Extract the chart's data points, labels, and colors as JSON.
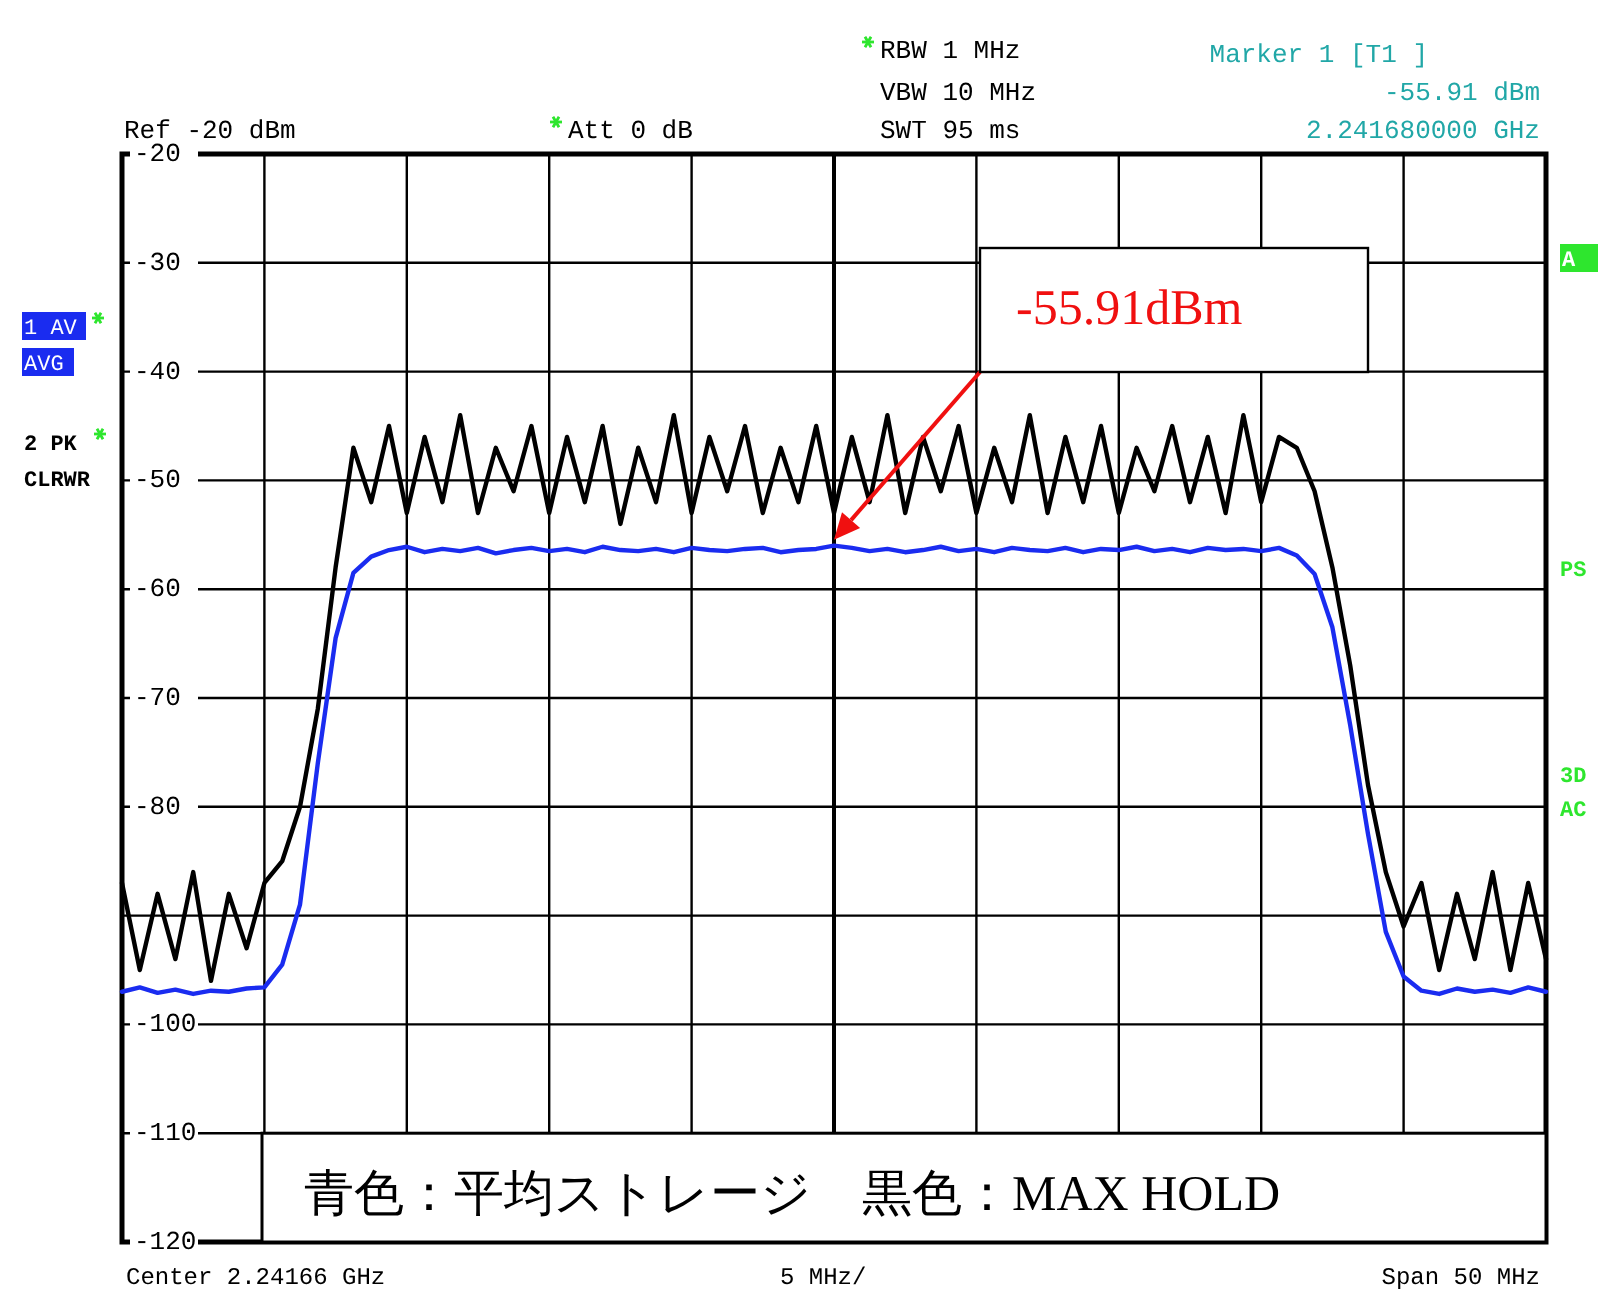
{
  "chart_data": {
    "type": "line",
    "categories": [
      null,
      null,
      null,
      null,
      null,
      null,
      null,
      null,
      null,
      null,
      null,
      null,
      null,
      null,
      null,
      null,
      null,
      null,
      null,
      null,
      null,
      null,
      null,
      null,
      null,
      null,
      null,
      null,
      null,
      null,
      null,
      null,
      null,
      null,
      null,
      null,
      null,
      null,
      null,
      null,
      null,
      null,
      null,
      null,
      null,
      null,
      null,
      null,
      null,
      null,
      null,
      null,
      null,
      null,
      null,
      null,
      null,
      null,
      null,
      null,
      null,
      null,
      null,
      null,
      null,
      null,
      null,
      null,
      null,
      null,
      null,
      null,
      null,
      null,
      null,
      null,
      null,
      null,
      null,
      null,
      null
    ],
    "series": [
      {
        "color": "#000000",
        "values": [
          -87,
          -95,
          -88,
          -94,
          -86,
          -96,
          -88,
          -93,
          -87,
          -85,
          -80,
          -71,
          -58,
          -47,
          -52,
          -45,
          -53,
          -46,
          -52,
          -44,
          -53,
          -47,
          -51,
          -45,
          -53,
          -46,
          -52,
          -45,
          -54,
          -47,
          -52,
          -44,
          -53,
          -46,
          -51,
          -45,
          -53,
          -47,
          -52,
          -45,
          -53,
          -46,
          -52,
          -44,
          -53,
          -46,
          -51,
          -45,
          -53,
          -47,
          -52,
          -44,
          -53,
          -46,
          -52,
          -45,
          -53,
          -47,
          -51,
          -45,
          -52,
          -46,
          -53,
          -44,
          -52,
          -46,
          -47,
          -51,
          -58,
          -67,
          -78,
          -86,
          -91,
          -87,
          -95,
          -88,
          -94,
          -86,
          -95,
          -87,
          -94
        ]
      },
      {
        "color": "#1a2cf0",
        "values": [
          -97.0,
          -96.6,
          -97.1,
          -96.8,
          -97.2,
          -96.9,
          -97.0,
          -96.7,
          -96.6,
          -94.5,
          -89,
          -76,
          -64.5,
          -58.5,
          -57.0,
          -56.4,
          -56.1,
          -56.6,
          -56.3,
          -56.5,
          -56.2,
          -56.7,
          -56.4,
          -56.2,
          -56.5,
          -56.3,
          -56.6,
          -56.1,
          -56.4,
          -56.5,
          -56.3,
          -56.6,
          -56.2,
          -56.4,
          -56.5,
          -56.3,
          -56.2,
          -56.6,
          -56.4,
          -56.3,
          -56,
          -56.2,
          -56.5,
          -56.3,
          -56.6,
          -56.4,
          -56.1,
          -56.5,
          -56.3,
          -56.6,
          -56.2,
          -56.4,
          -56.5,
          -56.2,
          -56.6,
          -56.3,
          -56.4,
          -56.1,
          -56.5,
          -56.3,
          -56.6,
          -56.2,
          -56.4,
          -56.3,
          -56.5,
          -56.2,
          -56.9,
          -58.6,
          -63.5,
          -72.5,
          -82.5,
          -91.5,
          -95.6,
          -96.9,
          -97.2,
          -96.7,
          -97.0,
          -96.8,
          -97.1,
          -96.6,
          -97.0
        ]
      }
    ],
    "ylim": [
      -120,
      -20
    ],
    "yticks": [
      -20,
      -30,
      -40,
      -50,
      -60,
      -70,
      -80,
      {
        "value": -90,
        "label": null
      },
      -100,
      -110,
      -120
    ],
    "grid": true,
    "line_style": "solid",
    "annotations": [
      "RBW 1 MHz",
      "VBW 10 MHz",
      "SWT 95 ms",
      "Marker 1 [T1 ]",
      "-55.91 dBm",
      "2.241680000 GHz",
      "Ref -20 dBm",
      "Att 0 dB",
      "1 AV",
      "AVG",
      "2 PK",
      "CLRWR",
      "A",
      "PS",
      "3D",
      "AC",
      "Center 2.24166 GHz",
      "5 MHz/",
      "Span 50 MHz",
      "青色：平均ストレージ　黒色：MAX HOLD",
      "-55.91dBm"
    ]
  }
}
